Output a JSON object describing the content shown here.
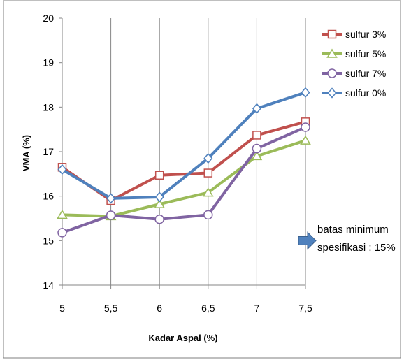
{
  "chart_data": {
    "type": "line",
    "title": "",
    "xlabel": "Kadar Aspal (%)",
    "ylabel": "VMA (%)",
    "ylim": [
      14,
      20
    ],
    "xlim": [
      5,
      7.5
    ],
    "x": [
      5,
      5.5,
      6,
      6.5,
      7,
      7.5
    ],
    "x_tick_labels": [
      "5",
      "5,5",
      "6",
      "6,5",
      "7",
      "7,5"
    ],
    "y_ticks": [
      14,
      15,
      16,
      17,
      18,
      19,
      20
    ],
    "y_tick_labels": [
      "14",
      "15",
      "16",
      "17",
      "18",
      "19",
      "20"
    ],
    "grid": "vertical",
    "legend_position": "right",
    "series": [
      {
        "name": "sulfur 3%",
        "color": "#C0504D",
        "marker": "square",
        "values": [
          16.65,
          15.9,
          16.47,
          16.52,
          17.37,
          17.67
        ]
      },
      {
        "name": "sulfur 5%",
        "color": "#9BBB59",
        "marker": "triangle",
        "values": [
          15.58,
          15.55,
          15.82,
          16.08,
          16.9,
          17.25
        ]
      },
      {
        "name": "sulfur 7%",
        "color": "#8064A2",
        "marker": "circle",
        "values": [
          15.18,
          15.57,
          15.48,
          15.58,
          17.07,
          17.55
        ]
      },
      {
        "name": "sulfur 0%",
        "color": "#4F81BD",
        "marker": "diamond",
        "values": [
          16.6,
          15.95,
          15.98,
          16.85,
          17.97,
          18.33
        ]
      }
    ],
    "annotation": {
      "line1": "batas minimum",
      "line2": "spesifikasi : 15%",
      "value": 15,
      "icon": "right-arrow-icon",
      "color": "#4F81BD"
    }
  }
}
